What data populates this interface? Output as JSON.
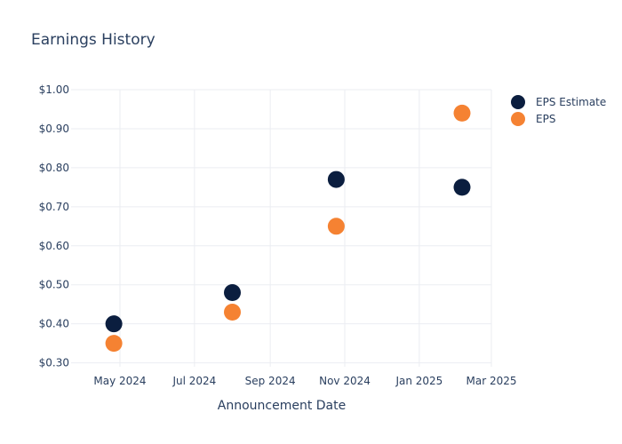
{
  "chart_data": {
    "type": "scatter",
    "title": "Earnings History",
    "xlabel": "Announcement Date",
    "ylabel": "",
    "x_axis": {
      "type": "date",
      "range": [
        "2024-03-22",
        "2025-03-01"
      ],
      "ticks": [
        {
          "date": "2024-05-01",
          "label": "May 2024"
        },
        {
          "date": "2024-07-01",
          "label": "Jul 2024"
        },
        {
          "date": "2024-09-01",
          "label": "Sep 2024"
        },
        {
          "date": "2024-11-01",
          "label": "Nov 2024"
        },
        {
          "date": "2025-01-01",
          "label": "Jan 2025"
        },
        {
          "date": "2025-03-01",
          "label": "Mar 2025"
        }
      ]
    },
    "y_axis": {
      "range": [
        0.29,
        1.0
      ],
      "ticks": [
        {
          "value": 0.3,
          "label": "$0.30"
        },
        {
          "value": 0.4,
          "label": "$0.40"
        },
        {
          "value": 0.5,
          "label": "$0.50"
        },
        {
          "value": 0.6,
          "label": "$0.60"
        },
        {
          "value": 0.7,
          "label": "$0.70"
        },
        {
          "value": 0.8,
          "label": "$0.80"
        },
        {
          "value": 0.9,
          "label": "$0.90"
        },
        {
          "value": 1.0,
          "label": "$1.00"
        }
      ]
    },
    "grid": true,
    "legend_position": "top-right",
    "series": [
      {
        "name": "EPS Estimate",
        "color": "#0b1e3f",
        "points": [
          {
            "x": "2024-04-26",
            "y": 0.4
          },
          {
            "x": "2024-08-01",
            "y": 0.48
          },
          {
            "x": "2024-10-25",
            "y": 0.77
          },
          {
            "x": "2025-02-05",
            "y": 0.75
          }
        ]
      },
      {
        "name": "EPS",
        "color": "#f58232",
        "points": [
          {
            "x": "2024-04-26",
            "y": 0.35
          },
          {
            "x": "2024-08-01",
            "y": 0.43
          },
          {
            "x": "2024-10-25",
            "y": 0.65
          },
          {
            "x": "2025-02-05",
            "y": 0.94
          }
        ]
      }
    ]
  }
}
